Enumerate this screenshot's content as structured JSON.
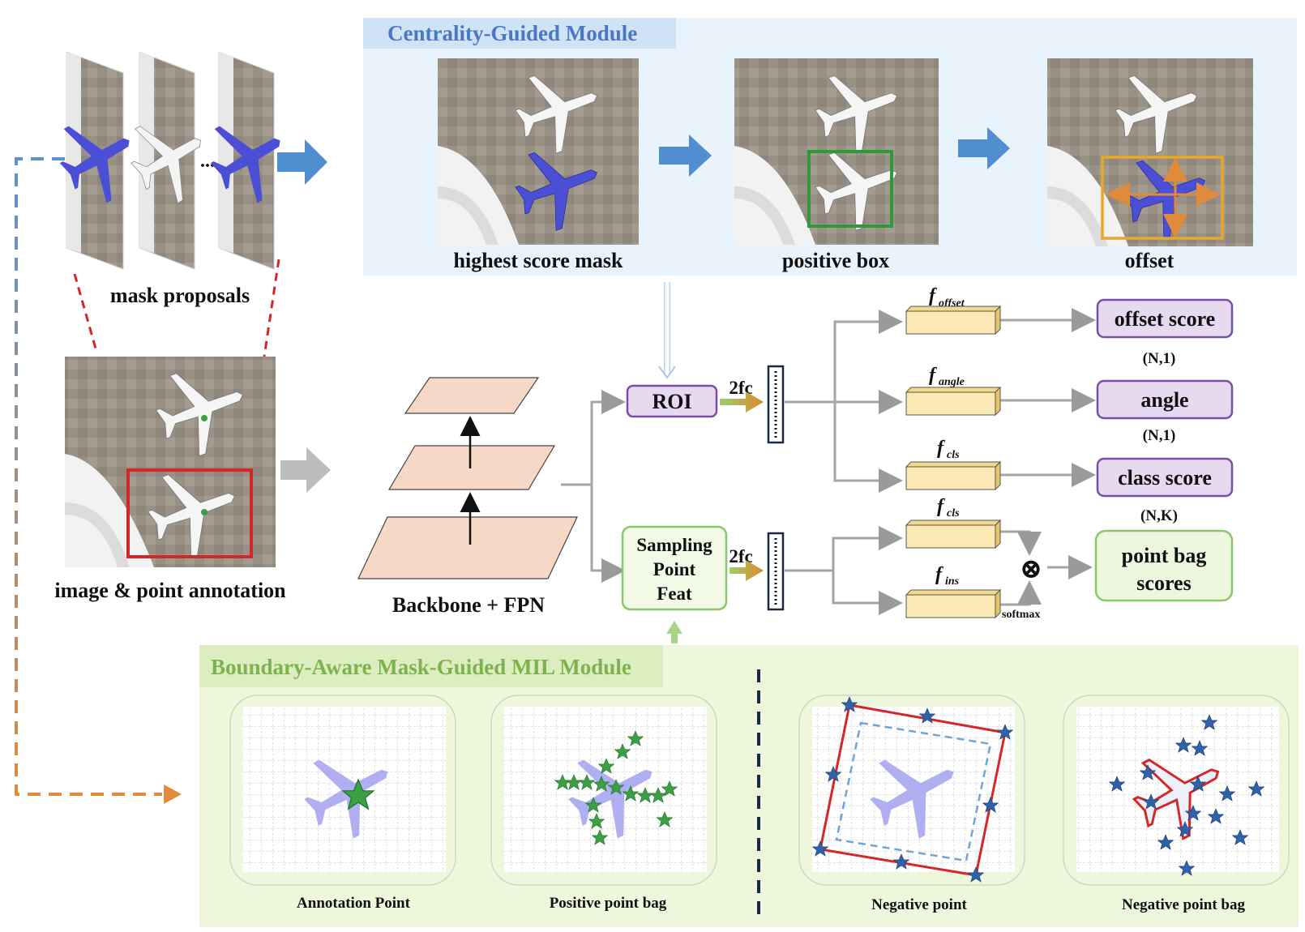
{
  "inputs": {
    "mask_proposals_label": "mask proposals",
    "ellipsis": "...",
    "image_label": "image & point annotation"
  },
  "centrality_module": {
    "title": "Centrality-Guided Module",
    "step1": "highest score mask",
    "step2": "positive box",
    "step3": "offset"
  },
  "backbone": {
    "label": "Backbone + FPN"
  },
  "roi_branch": {
    "roi_label": "ROI",
    "fc_label": "2fc",
    "heads": [
      {
        "f_main": "f",
        "f_sub": "offset",
        "output": "offset score",
        "shape": "(N,1)"
      },
      {
        "f_main": "f",
        "f_sub": "angle",
        "output": "angle",
        "shape": "(N,1)"
      },
      {
        "f_main": "f",
        "f_sub": "cls",
        "output": "class score",
        "shape": "(N,K)"
      }
    ]
  },
  "sampling_branch": {
    "box_lines": [
      "Sampling",
      "Point",
      "Feat"
    ],
    "fc_label": "2fc",
    "f_cls_main": "f",
    "f_cls_sub": "cls",
    "f_ins_main": "f",
    "f_ins_sub": "ins",
    "softmax_label": "softmax",
    "otimes": "⊗",
    "output_lines": [
      "point bag",
      "scores"
    ]
  },
  "mil_module": {
    "title": "Boundary-Aware Mask-Guided MIL Module",
    "panels": [
      "Annotation Point",
      "Positive point bag",
      "Negative point",
      "Negative point bag"
    ]
  },
  "colors": {
    "blue_panel": "#e9f3fb",
    "blue_title_bg": "#cfe3f5",
    "green_panel": "#eef6dc",
    "green_title_bg": "#dcedbf",
    "purple_box": "#e6d9f0",
    "purple_border": "#7b4fa3",
    "yellow_box": "#fbe9b3",
    "green_box_border": "#8bc76a",
    "arrow_blue": "#4f8fcf",
    "arrow_orange": "#e08a3c",
    "star_green": "#3aa043",
    "star_blue": "#2f62a8",
    "red_line": "#d62728"
  }
}
